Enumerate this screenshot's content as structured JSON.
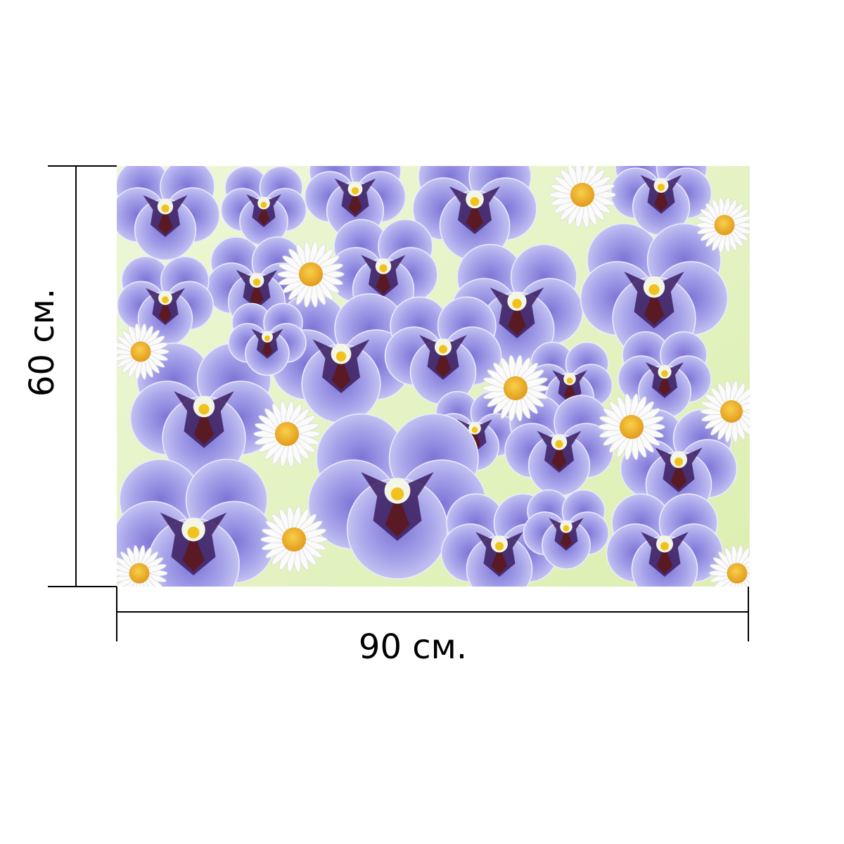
{
  "product": {
    "width_label": "90 см.",
    "height_label": "60 см."
  },
  "colors": {
    "background": "#ffffff",
    "dimension_line": "#000000",
    "canvas_green": "#e8f4cc",
    "pansy_light": "#b9b8ee",
    "pansy_mid": "#8e88dc",
    "pansy_dark": "#3a1f6a",
    "pansy_blotch": "#4a1a2a",
    "pansy_eye": "#f2c21c",
    "daisy_petal": "#fbfbfb",
    "daisy_center": "#f0b22a"
  },
  "icons": {
    "artwork": "pansy-daisy-pattern"
  }
}
